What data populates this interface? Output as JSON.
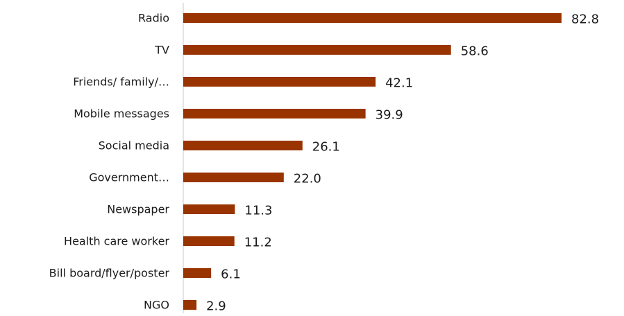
{
  "chart_data": {
    "type": "bar",
    "orientation": "horizontal",
    "categories": [
      "Radio",
      "TV",
      "Friends/ family/…",
      "Mobile messages",
      "Social media",
      "Government…",
      "Newspaper",
      "Health care worker",
      "Bill board/flyer/poster",
      "NGO"
    ],
    "values": [
      82.8,
      58.6,
      42.1,
      39.9,
      26.1,
      22.0,
      11.3,
      11.2,
      6.1,
      2.9
    ],
    "value_labels": [
      "82.8",
      "58.6",
      "42.1",
      "39.9",
      "26.1",
      "22.0",
      "11.3",
      "11.2",
      "6.1",
      "2.9"
    ],
    "title": "",
    "xlabel": "",
    "ylabel": "",
    "xlim": [
      0,
      82.8
    ],
    "grid": false,
    "legend": "none",
    "bar_color": "#993300",
    "axis_color": "#c8c8c8"
  }
}
